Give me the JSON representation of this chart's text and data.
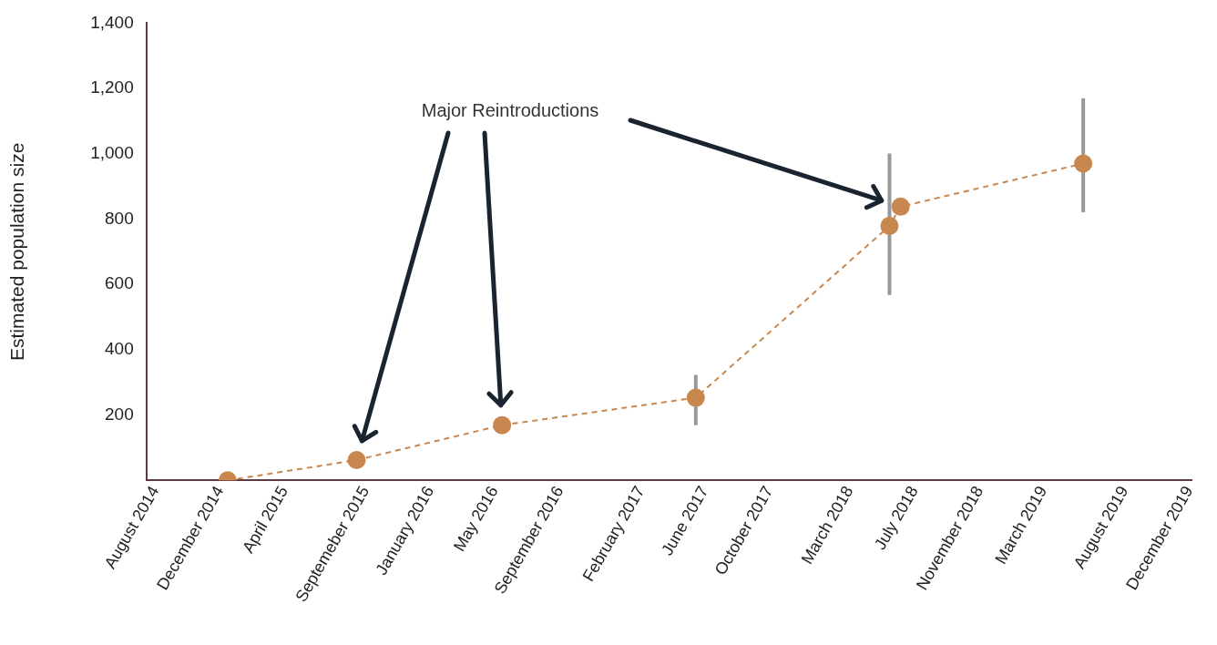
{
  "chart_data": {
    "type": "line",
    "ylabel": "Estimated population size",
    "annotations": [
      "Major Reintroductions"
    ],
    "x": [
      "2014-12-15",
      "2015-08-15",
      "2016-05-15",
      "2017-05-15",
      "2018-05-15",
      "2018-06-05",
      "2019-05-15"
    ],
    "series": [
      {
        "color": "#c8874e",
        "values": [
          0,
          62,
          169,
          253,
          779,
          838,
          970
        ],
        "errors": [
          null,
          null,
          null,
          [
            169,
            323
          ],
          [
            568,
            1001
          ],
          null,
          [
            821,
            1170
          ]
        ]
      }
    ],
    "xlim": [
      "2014-07-15",
      "2019-12-05"
    ],
    "xticks": [
      {
        "value": "2014-08",
        "label": "August 2014"
      },
      {
        "value": "2014-12",
        "label": "December 2014"
      },
      {
        "value": "2015-04",
        "label": "April 2015"
      },
      {
        "value": "2015-09",
        "label": "Septemeber 2015"
      },
      {
        "value": "2016-01",
        "label": "January 2016"
      },
      {
        "value": "2016-05",
        "label": "May 2016"
      },
      {
        "value": "2016-09",
        "label": "September 2016"
      },
      {
        "value": "2017-02",
        "label": "February 2017"
      },
      {
        "value": "2017-06",
        "label": "June 2017"
      },
      {
        "value": "2017-10",
        "label": "October 2017"
      },
      {
        "value": "2018-03",
        "label": "March 2018"
      },
      {
        "value": "2018-07",
        "label": "July 2018"
      },
      {
        "value": "2018-11",
        "label": "November 2018"
      },
      {
        "value": "2019-03",
        "label": "March 2019"
      },
      {
        "value": "2019-08",
        "label": "August 2019"
      },
      {
        "value": "2019-12",
        "label": "December 2019"
      }
    ],
    "ylim": [
      0,
      1400
    ],
    "yticks": [
      200,
      400,
      600,
      800,
      {
        "value": 1000,
        "label": "1,000"
      },
      {
        "value": 1200,
        "label": "1,200"
      },
      {
        "value": 1400,
        "label": "1,400"
      }
    ],
    "grid": false,
    "legend": false,
    "marker": "circle",
    "line_style": "dashed"
  }
}
